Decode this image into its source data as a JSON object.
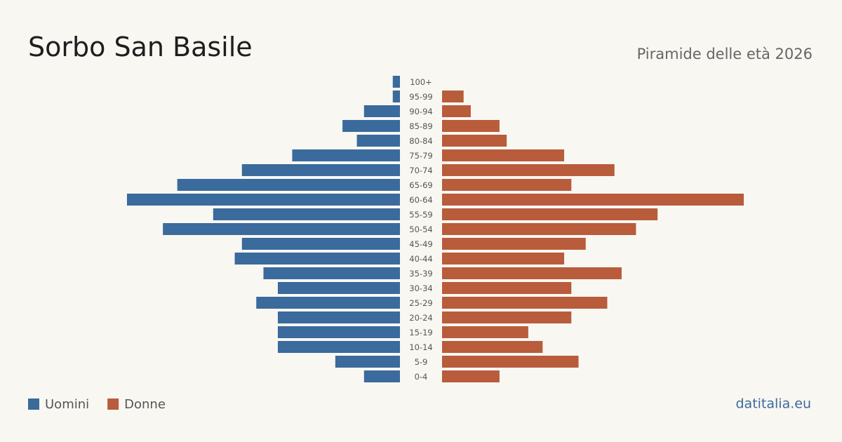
{
  "chart_data": {
    "type": "pyramid",
    "title": "Sorbo San Basile",
    "subtitle": "Piramide delle età 2026",
    "source": "datitalia.eu",
    "categories": [
      "100+",
      "95-99",
      "90-94",
      "85-89",
      "80-84",
      "75-79",
      "70-74",
      "65-69",
      "60-64",
      "55-59",
      "50-54",
      "45-49",
      "40-44",
      "35-39",
      "30-34",
      "25-29",
      "20-24",
      "15-19",
      "10-14",
      "5-9",
      "0-4"
    ],
    "series": [
      {
        "name": "Uomini",
        "color": "#3b6a9c",
        "values": [
          1,
          1,
          5,
          8,
          6,
          15,
          22,
          31,
          38,
          26,
          33,
          22,
          23,
          19,
          17,
          20,
          17,
          17,
          17,
          9,
          5
        ]
      },
      {
        "name": "Donne",
        "color": "#b85c3c",
        "values": [
          0,
          3,
          4,
          8,
          9,
          17,
          24,
          18,
          42,
          30,
          27,
          20,
          17,
          25,
          18,
          23,
          18,
          12,
          14,
          19,
          8
        ]
      }
    ]
  }
}
